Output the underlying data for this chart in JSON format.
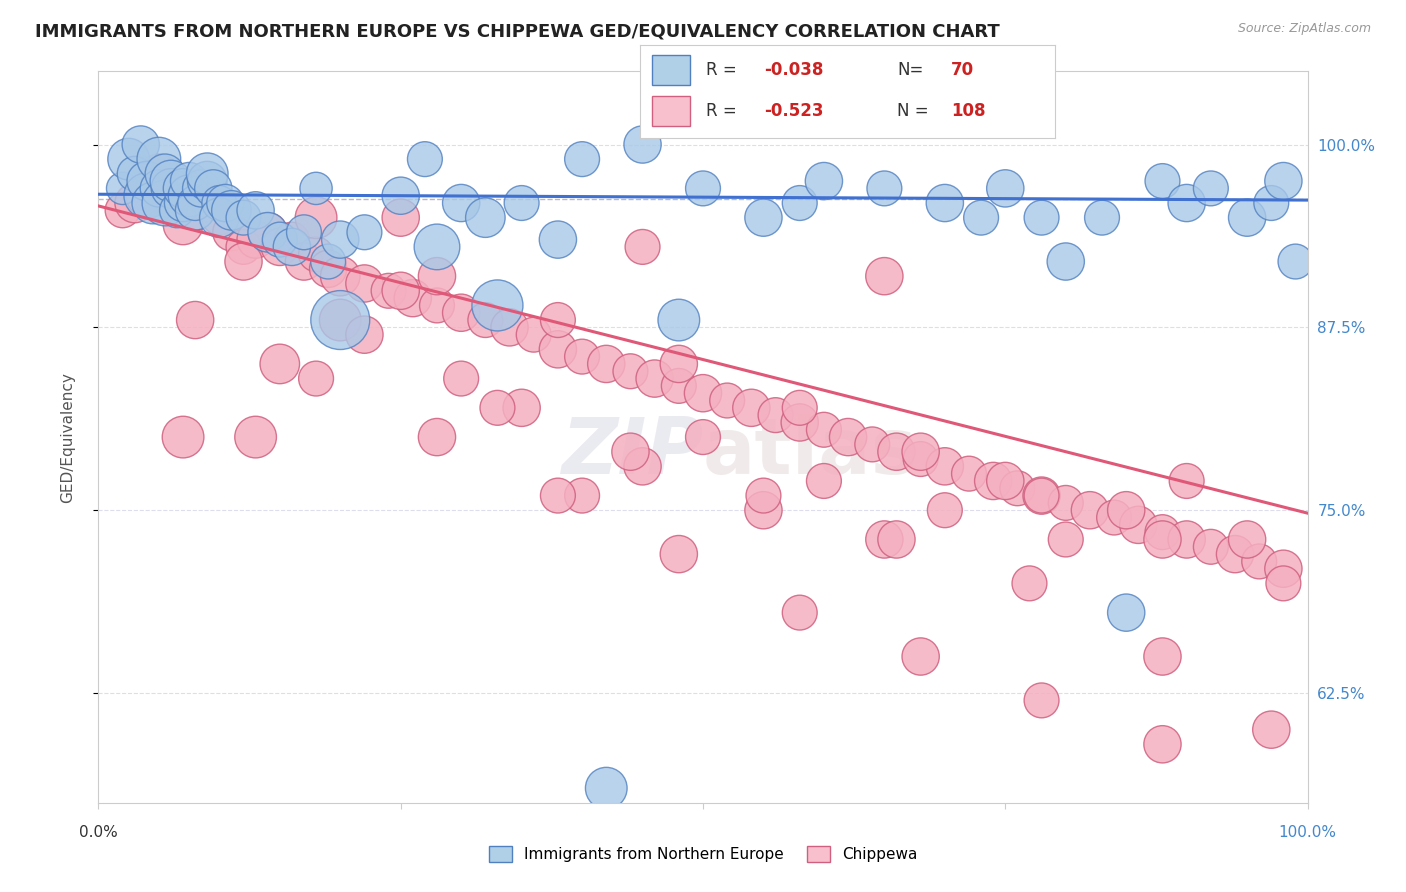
{
  "title": "IMMIGRANTS FROM NORTHERN EUROPE VS CHIPPEWA GED/EQUIVALENCY CORRELATION CHART",
  "source_text": "Source: ZipAtlas.com",
  "ylabel": "GED/Equivalency",
  "xlim": [
    0.0,
    1.0
  ],
  "ylim": [
    0.55,
    1.05
  ],
  "ytick_values": [
    0.625,
    0.75,
    0.875,
    1.0
  ],
  "color_blue": "#a8c8e8",
  "color_pink": "#f4b0c0",
  "color_blue_edge": "#5080c0",
  "color_pink_edge": "#d06080",
  "color_blue_line": "#4070d0",
  "color_pink_line": "#e05878",
  "color_blue_legend": "#b0d0e8",
  "color_pink_legend": "#f8c0cc",
  "background_color": "#ffffff",
  "blue_x": [
    0.02,
    0.025,
    0.03,
    0.035,
    0.04,
    0.04,
    0.045,
    0.05,
    0.05,
    0.055,
    0.055,
    0.06,
    0.06,
    0.065,
    0.07,
    0.07,
    0.075,
    0.075,
    0.08,
    0.08,
    0.085,
    0.09,
    0.09,
    0.095,
    0.1,
    0.1,
    0.105,
    0.11,
    0.12,
    0.13,
    0.14,
    0.15,
    0.16,
    0.17,
    0.18,
    0.19,
    0.2,
    0.22,
    0.25,
    0.27,
    0.3,
    0.32,
    0.35,
    0.38,
    0.4,
    0.45,
    0.5,
    0.55,
    0.58,
    0.6,
    0.65,
    0.7,
    0.73,
    0.75,
    0.78,
    0.8,
    0.83,
    0.85,
    0.88,
    0.9,
    0.92,
    0.95,
    0.97,
    0.98,
    0.99,
    0.2,
    0.28,
    0.33,
    0.42,
    0.48
  ],
  "blue_y": [
    0.97,
    0.99,
    0.98,
    1.0,
    0.965,
    0.975,
    0.96,
    0.99,
    0.97,
    0.98,
    0.96,
    0.97,
    0.975,
    0.955,
    0.96,
    0.97,
    0.965,
    0.975,
    0.955,
    0.96,
    0.97,
    0.975,
    0.98,
    0.97,
    0.96,
    0.95,
    0.96,
    0.955,
    0.95,
    0.955,
    0.94,
    0.935,
    0.93,
    0.94,
    0.97,
    0.92,
    0.935,
    0.94,
    0.965,
    0.99,
    0.96,
    0.95,
    0.96,
    0.935,
    0.99,
    1.0,
    0.97,
    0.95,
    0.96,
    0.975,
    0.97,
    0.96,
    0.95,
    0.97,
    0.95,
    0.92,
    0.95,
    0.68,
    0.975,
    0.96,
    0.97,
    0.95,
    0.96,
    0.975,
    0.92,
    0.88,
    0.93,
    0.89,
    0.56,
    0.88
  ],
  "blue_s": [
    60,
    100,
    70,
    80,
    120,
    90,
    100,
    110,
    80,
    90,
    120,
    90,
    100,
    70,
    80,
    90,
    100,
    80,
    90,
    70,
    80,
    90,
    100,
    80,
    70,
    90,
    80,
    90,
    70,
    80,
    90,
    70,
    80,
    70,
    60,
    70,
    80,
    70,
    80,
    70,
    80,
    90,
    70,
    80,
    70,
    80,
    70,
    80,
    70,
    80,
    70,
    80,
    70,
    80,
    70,
    80,
    70,
    80,
    70,
    80,
    70,
    80,
    70,
    80,
    70,
    200,
    120,
    150,
    100,
    100
  ],
  "pink_x": [
    0.02,
    0.03,
    0.04,
    0.05,
    0.06,
    0.07,
    0.08,
    0.09,
    0.1,
    0.11,
    0.12,
    0.13,
    0.14,
    0.15,
    0.16,
    0.17,
    0.18,
    0.19,
    0.2,
    0.22,
    0.24,
    0.26,
    0.28,
    0.3,
    0.32,
    0.34,
    0.36,
    0.38,
    0.4,
    0.42,
    0.44,
    0.46,
    0.48,
    0.5,
    0.52,
    0.54,
    0.56,
    0.58,
    0.6,
    0.62,
    0.64,
    0.66,
    0.68,
    0.7,
    0.72,
    0.74,
    0.76,
    0.78,
    0.8,
    0.82,
    0.84,
    0.86,
    0.88,
    0.9,
    0.92,
    0.94,
    0.96,
    0.98,
    0.07,
    0.12,
    0.15,
    0.2,
    0.25,
    0.3,
    0.35,
    0.4,
    0.45,
    0.5,
    0.55,
    0.6,
    0.65,
    0.7,
    0.75,
    0.8,
    0.85,
    0.9,
    0.95,
    0.13,
    0.22,
    0.33,
    0.44,
    0.55,
    0.66,
    0.77,
    0.88,
    0.97,
    0.18,
    0.28,
    0.38,
    0.48,
    0.58,
    0.68,
    0.78,
    0.88,
    0.98,
    0.08,
    0.18,
    0.28,
    0.38,
    0.48,
    0.58,
    0.68,
    0.78,
    0.88,
    0.05,
    0.25,
    0.45,
    0.65
  ],
  "pink_y": [
    0.955,
    0.96,
    0.965,
    0.98,
    0.96,
    0.945,
    0.955,
    0.96,
    0.95,
    0.94,
    0.93,
    0.935,
    0.94,
    0.93,
    0.935,
    0.92,
    0.925,
    0.915,
    0.91,
    0.905,
    0.9,
    0.895,
    0.89,
    0.885,
    0.88,
    0.875,
    0.87,
    0.86,
    0.855,
    0.85,
    0.845,
    0.84,
    0.835,
    0.83,
    0.825,
    0.82,
    0.815,
    0.81,
    0.805,
    0.8,
    0.795,
    0.79,
    0.785,
    0.78,
    0.775,
    0.77,
    0.765,
    0.76,
    0.755,
    0.75,
    0.745,
    0.74,
    0.735,
    0.73,
    0.725,
    0.72,
    0.715,
    0.71,
    0.8,
    0.92,
    0.85,
    0.88,
    0.9,
    0.84,
    0.82,
    0.76,
    0.78,
    0.8,
    0.75,
    0.77,
    0.73,
    0.75,
    0.77,
    0.73,
    0.75,
    0.77,
    0.73,
    0.8,
    0.87,
    0.82,
    0.79,
    0.76,
    0.73,
    0.7,
    0.65,
    0.6,
    0.95,
    0.91,
    0.88,
    0.85,
    0.82,
    0.79,
    0.76,
    0.73,
    0.7,
    0.88,
    0.84,
    0.8,
    0.76,
    0.72,
    0.68,
    0.65,
    0.62,
    0.59,
    0.97,
    0.95,
    0.93,
    0.91
  ],
  "pink_s": [
    70,
    90,
    100,
    90,
    70,
    90,
    90,
    80,
    70,
    80,
    70,
    80,
    90,
    80,
    70,
    80,
    70,
    80,
    90,
    80,
    70,
    80,
    70,
    80,
    70,
    80,
    70,
    80,
    70,
    80,
    70,
    80,
    70,
    80,
    70,
    80,
    70,
    80,
    70,
    80,
    70,
    80,
    70,
    80,
    70,
    80,
    70,
    80,
    70,
    80,
    70,
    80,
    70,
    80,
    70,
    80,
    70,
    80,
    100,
    80,
    90,
    100,
    80,
    70,
    80,
    70,
    80,
    70,
    80,
    70,
    80,
    70,
    80,
    70,
    80,
    70,
    80,
    100,
    80,
    70,
    80,
    70,
    80,
    70,
    80,
    80,
    100,
    80,
    70,
    80,
    70,
    80,
    70,
    80,
    70,
    80,
    70,
    80,
    70,
    80,
    70,
    80,
    70,
    80,
    70,
    80,
    70,
    80
  ]
}
